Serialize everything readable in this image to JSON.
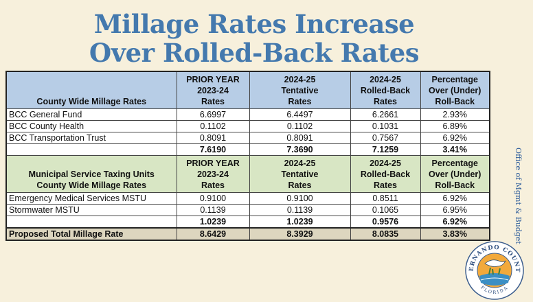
{
  "title": {
    "line1": "Millage Rates Increase",
    "line2": "Over Rolled-Back Rates"
  },
  "side_text": "Office of Mgmt & Budget",
  "seal": {
    "top": "HERNANDO COUNTY",
    "bottom": "FLORIDA"
  },
  "county": {
    "header": {
      "label": "County Wide Millage Rates",
      "prior": [
        "PRIOR YEAR",
        "2023-24",
        "Rates"
      ],
      "tentative": [
        "2024-25",
        "Tentative",
        "Rates"
      ],
      "rolled": [
        "2024-25",
        "Rolled-Back",
        "Rates"
      ],
      "pct": [
        "Percentage",
        "Over (Under)",
        "Roll-Back"
      ]
    },
    "rows": [
      {
        "name": "BCC General Fund",
        "prior": "6.6997",
        "tentative": "6.4497",
        "rolled": "6.2661",
        "pct": "2.93%"
      },
      {
        "name": "BCC County Health",
        "prior": "0.1102",
        "tentative": "0.1102",
        "rolled": "0.1031",
        "pct": "6.89%"
      },
      {
        "name": "BCC Transportation Trust",
        "prior": "0.8091",
        "tentative": "0.8091",
        "rolled": "0.7567",
        "pct": "6.92%"
      }
    ],
    "subtotal": {
      "prior": "7.6190",
      "tentative": "7.3690",
      "rolled": "7.1259",
      "pct": "3.41%"
    }
  },
  "msu": {
    "header": {
      "label1": "Municipal Service Taxing Units",
      "label2": "County Wide Millage Rates",
      "prior": [
        "PRIOR YEAR",
        "2023-24",
        "Rates"
      ],
      "tentative": [
        "2024-25",
        "Tentative",
        "Rates"
      ],
      "rolled": [
        "2024-25",
        "Rolled-Back",
        "Rates"
      ],
      "pct": [
        "Percentage",
        "Over (Under)",
        "Roll-Back"
      ]
    },
    "rows": [
      {
        "name": "Emergency Medical Services MSTU",
        "prior": "0.9100",
        "tentative": "0.9100",
        "rolled": "0.8511",
        "pct": "6.92%"
      },
      {
        "name": "Stormwater MSTU",
        "prior": "0.1139",
        "tentative": "0.1139",
        "rolled": "0.1065",
        "pct": "6.95%"
      }
    ],
    "subtotal": {
      "prior": "1.0239",
      "tentative": "1.0239",
      "rolled": "0.9576",
      "pct": "6.92%"
    }
  },
  "total": {
    "name": "Proposed Total Millage Rate",
    "prior": "8.6429",
    "tentative": "8.3929",
    "rolled": "8.0835",
    "pct": "3.83%"
  }
}
